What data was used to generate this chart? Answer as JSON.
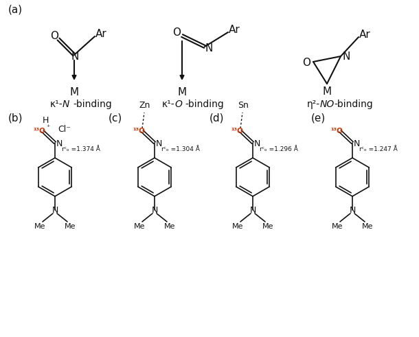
{
  "bg": "#ffffff",
  "tc": "#111111",
  "oc": "#cc3300",
  "fig_w": 6.1,
  "fig_h": 4.91,
  "dpi": 100,
  "label_a": "(a)",
  "label_b": "(b)",
  "label_c": "(c)",
  "label_d": "(d)",
  "label_e": "(e)",
  "rno_b": "rᶜₒ =1.374 Å",
  "rno_c": "rᶜₒ =1.304 Å",
  "rno_d": "rᶜₒ =1.296 Å",
  "rno_e": "rᶜₒ =1.247 Å",
  "O13": "¹³O",
  "plus": "⁺",
  "minus": "⁻",
  "kN_pre": "κ¹-",
  "kN_it": "N",
  "kN_post": "-binding",
  "kO_pre": "κ¹-",
  "kO_it": "O",
  "kO_post": "-binding",
  "eta_pre": "η²-",
  "eta_it": "NO",
  "eta_post": "-binding"
}
